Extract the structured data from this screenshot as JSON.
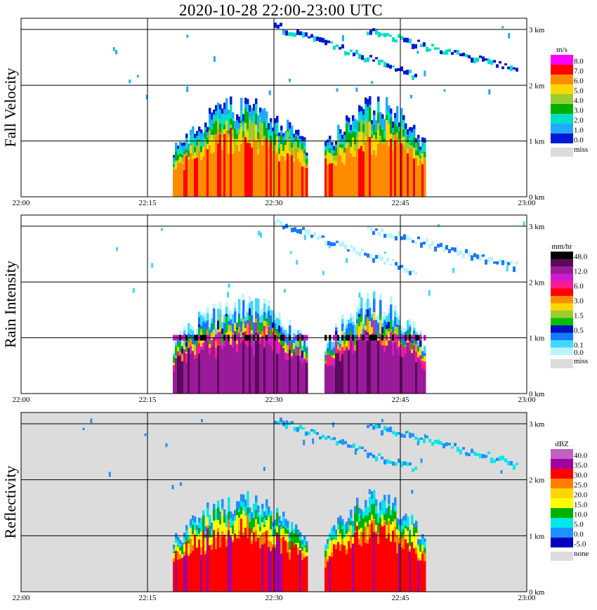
{
  "title": "2020-10-28   22:00-23:00 UTC",
  "time_ticks": [
    "22:00",
    "22:15",
    "22:30",
    "22:45",
    "23:00"
  ],
  "height_ticks": [
    "0 km",
    "1 km",
    "2 km",
    "3 km"
  ],
  "panels": [
    {
      "id": "fall-velocity",
      "ylabel": "Fall Velocity",
      "unit": "m/s",
      "scale_labels": [
        "8.0",
        "7.0",
        "6.0",
        "5.0",
        "4.0",
        "3.0",
        "2.0",
        "1.0",
        "0.0"
      ],
      "scale_colors": [
        "#ff00ff",
        "#ff0000",
        "#ff8c00",
        "#ffd700",
        "#9acd32",
        "#00b000",
        "#00e0c8",
        "#22a8ff",
        "#0018d8"
      ],
      "missing_label": "miss",
      "missing_color": "#dcdcdc",
      "background": "#ffffff"
    },
    {
      "id": "rain-intensity",
      "ylabel": "Rain Intensity",
      "unit": "mm/hr",
      "scale_labels": [
        "48.0",
        "",
        "12.0",
        "",
        "6.0",
        "",
        "3.0",
        "",
        "1.5",
        "",
        "0.5",
        "",
        "0.1",
        "0.0"
      ],
      "scale_colors": [
        "#000000",
        "#5a0a5a",
        "#9a1a9a",
        "#d01ad0",
        "#ff1a8c",
        "#ff0000",
        "#ff8c00",
        "#ffd700",
        "#9acd32",
        "#00c000",
        "#0010c0",
        "#1878ff",
        "#40d8ff",
        "#b8f4ff"
      ],
      "missing_label": "miss",
      "missing_color": "#dcdcdc",
      "background": "#ffffff"
    },
    {
      "id": "reflectivity",
      "ylabel": "Reflectivity",
      "unit": "dBZ",
      "scale_labels": [
        "40.0",
        "35.0",
        "30.0",
        "25.0",
        "20.0",
        "15.0",
        "10.0",
        "5.0",
        "0.0",
        "-5.0"
      ],
      "scale_colors": [
        "#c060c0",
        "#a000a0",
        "#ff0000",
        "#ff8000",
        "#ffd700",
        "#ffff00",
        "#00b000",
        "#00e8e8",
        "#1e90ff",
        "#0000c0"
      ],
      "missing_label": "none",
      "missing_color": "#dcdcdc",
      "background": "#dcdcdc"
    }
  ],
  "chart_data": {
    "type": "heatmap",
    "x_range": [
      "22:00",
      "23:00"
    ],
    "y_range_km": [
      0,
      3.2
    ],
    "grid": true,
    "storm_cells": [
      {
        "start": "22:18",
        "end": "22:34",
        "top_km": 1.6,
        "rain_peak_km": 1.0
      },
      {
        "start": "22:36",
        "end": "22:48",
        "top_km": 1.6,
        "rain_peak_km": 1.0
      }
    ],
    "upper_streaks": [
      {
        "start": "22:30",
        "end": "22:47",
        "from_km": 3.1,
        "to_km": 2.2
      },
      {
        "start": "22:41",
        "end": "22:59",
        "from_km": 3.0,
        "to_km": 2.3
      }
    ]
  }
}
